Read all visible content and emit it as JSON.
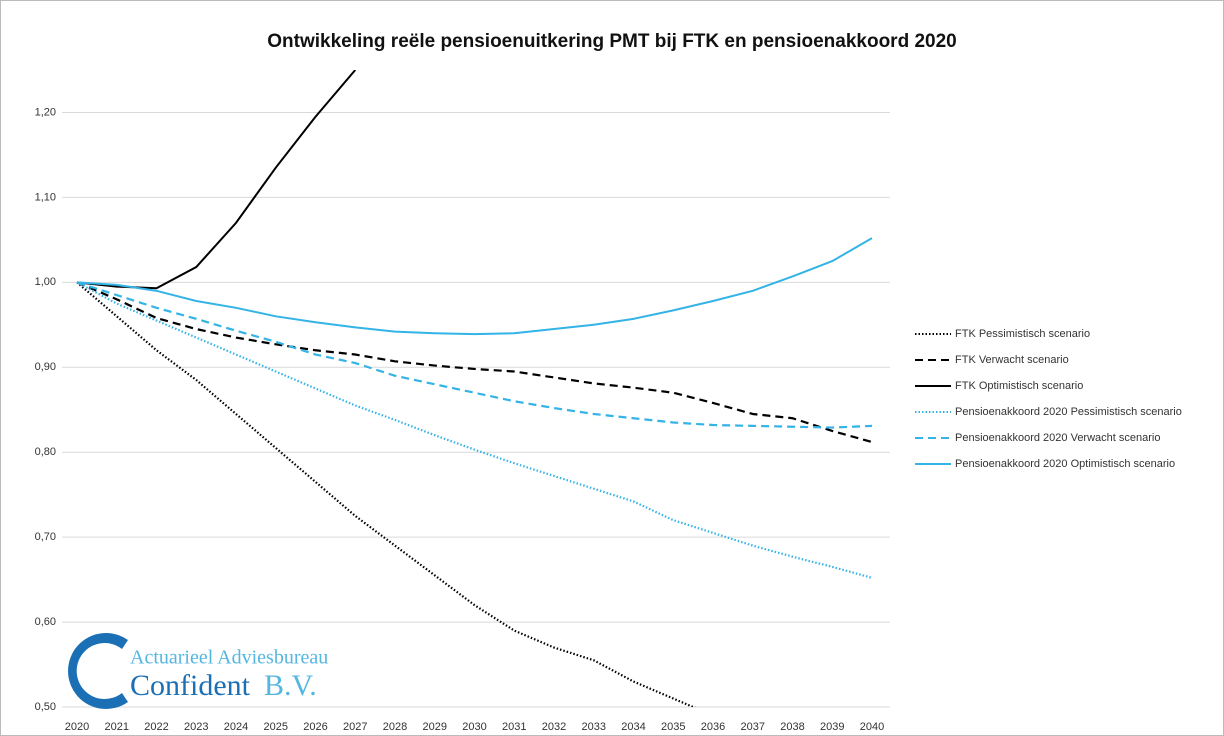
{
  "chart_data": {
    "type": "line",
    "title": "Ontwikkeling reële pensioenuitkering PMT bij FTK en pensioenakkoord 2020",
    "categories": [
      "2020",
      "2021",
      "2022",
      "2023",
      "2024",
      "2025",
      "2026",
      "2027",
      "2028",
      "2029",
      "2030",
      "2031",
      "2032",
      "2033",
      "2034",
      "2035",
      "2036",
      "2037",
      "2038",
      "2039",
      "2040"
    ],
    "ylim": [
      0.5,
      1.25
    ],
    "yticks": [
      {
        "value": 0.5,
        "label": "0,50"
      },
      {
        "value": 0.6,
        "label": "0,60"
      },
      {
        "value": 0.7,
        "label": "0,70"
      },
      {
        "value": 0.8,
        "label": "0,80"
      },
      {
        "value": 0.9,
        "label": "0,90"
      },
      {
        "value": 1.0,
        "label": "1,00"
      },
      {
        "value": 1.1,
        "label": "1,10"
      },
      {
        "value": 1.2,
        "label": "1,20"
      }
    ],
    "grid": true,
    "legend": "right",
    "series": [
      {
        "name": "FTK Pessimistisch scenario",
        "color": "#000000",
        "dash": "dotted",
        "values": [
          1.0,
          0.96,
          0.92,
          0.885,
          0.845,
          0.805,
          0.765,
          0.725,
          0.69,
          0.655,
          0.62,
          0.59,
          0.57,
          0.555,
          0.53,
          0.51,
          0.49,
          null,
          null,
          null,
          null
        ]
      },
      {
        "name": "FTK Verwacht scenario",
        "color": "#000000",
        "dash": "dashed",
        "values": [
          1.0,
          0.98,
          0.958,
          0.945,
          0.935,
          0.927,
          0.92,
          0.915,
          0.907,
          0.902,
          0.898,
          0.895,
          0.888,
          0.881,
          0.876,
          0.87,
          0.858,
          0.845,
          0.84,
          0.825,
          0.812
        ]
      },
      {
        "name": "FTK Optimistisch scenario",
        "color": "#000000",
        "dash": "solid",
        "values": [
          1.0,
          0.995,
          0.993,
          1.018,
          1.07,
          1.135,
          1.195,
          1.25,
          null,
          null,
          null,
          null,
          null,
          null,
          null,
          null,
          null,
          null,
          null,
          null,
          null
        ]
      },
      {
        "name": "Pensioenakkoord 2020 Pessimistisch scenario",
        "color": "#33b3e6",
        "dash": "dotted",
        "values": [
          1.0,
          0.975,
          0.955,
          0.935,
          0.915,
          0.895,
          0.875,
          0.855,
          0.838,
          0.82,
          0.803,
          0.787,
          0.772,
          0.757,
          0.742,
          0.72,
          0.705,
          0.69,
          0.677,
          0.665,
          0.652
        ]
      },
      {
        "name": "Pensioenakkoord 2020 Verwacht scenario",
        "color": "#33b3e6",
        "dash": "dashed",
        "values": [
          1.0,
          0.985,
          0.97,
          0.957,
          0.943,
          0.93,
          0.915,
          0.905,
          0.89,
          0.88,
          0.87,
          0.86,
          0.852,
          0.845,
          0.84,
          0.835,
          0.832,
          0.831,
          0.83,
          0.829,
          0.831
        ]
      },
      {
        "name": "Pensioenakkoord 2020 Optimistisch scenario",
        "color": "#33b3e6",
        "dash": "solid",
        "values": [
          1.0,
          0.997,
          0.99,
          0.978,
          0.97,
          0.96,
          0.953,
          0.947,
          0.942,
          0.94,
          0.939,
          0.94,
          0.945,
          0.95,
          0.957,
          0.967,
          0.978,
          0.99,
          1.007,
          1.025,
          1.052
        ]
      }
    ],
    "logo": {
      "line1": "Actuarieel  Adviesbureau",
      "line2": "Confident",
      "line3": "B.V."
    }
  }
}
